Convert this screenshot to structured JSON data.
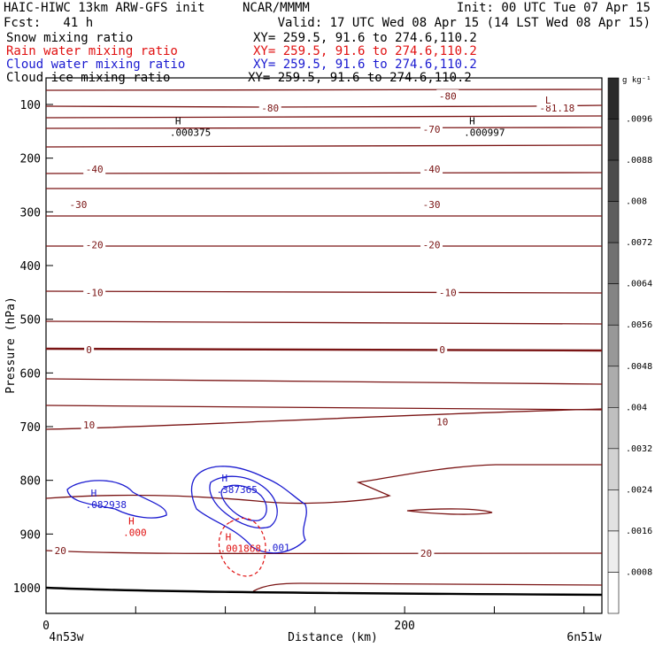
{
  "header": {
    "model": "HAIC-HIWC 13km ARW-GFS init",
    "org": "NCAR/MMMM",
    "init": "Init: 00 UTC Tue 07 Apr 15",
    "fcst": "Fcst:   41 h",
    "valid": "Valid: 17 UTC Wed 08 Apr 15 (14 LST Wed 08 Apr 15)"
  },
  "fields": [
    {
      "name": "Snow mixing ratio",
      "xy": "XY= 259.5, 91.6 to 274.6,110.2",
      "color": "#000000"
    },
    {
      "name": "Rain water mixing ratio",
      "xy": "XY= 259.5, 91.6 to 274.6,110.2",
      "color": "#e01010"
    },
    {
      "name": "Cloud water mixing ratio",
      "xy": "XY= 259.5, 91.6 to 274.6,110.2",
      "color": "#1a1ad0"
    },
    {
      "name": "Cloud ice mixing ratio",
      "xy": "XY= 259.5, 91.6 to 274.6,110.2",
      "color": "#000000"
    }
  ],
  "chart_data": {
    "type": "contour",
    "ylabel": "Pressure (hPa)",
    "xlabel": "Distance (km)",
    "ylim": [
      1050,
      60
    ],
    "xlim": [
      0,
      310
    ],
    "y_ticks": [
      100,
      200,
      300,
      400,
      500,
      600,
      700,
      800,
      900,
      1000
    ],
    "x_ticks": [
      0,
      200
    ],
    "x_endpoint_labels": [
      "4n53w",
      "6n51w"
    ],
    "temperature_contour_labels": [
      {
        "text": "-80",
        "x": 224,
        "p": 84
      },
      {
        "text": "-80",
        "x": 125,
        "p": 107
      },
      {
        "text": "-81.18",
        "x": 285,
        "p": 107
      },
      {
        "text": "L",
        "x": 280,
        "p": 92
      },
      {
        "text": "-70",
        "x": 215,
        "p": 146
      },
      {
        "text": "-40",
        "x": 27,
        "p": 220
      },
      {
        "text": "-40",
        "x": 215,
        "p": 220
      },
      {
        "text": "-30",
        "x": 18,
        "p": 286
      },
      {
        "text": "-30",
        "x": 215,
        "p": 286
      },
      {
        "text": "-20",
        "x": 27,
        "p": 361
      },
      {
        "text": "-20",
        "x": 215,
        "p": 361
      },
      {
        "text": "-10",
        "x": 27,
        "p": 450
      },
      {
        "text": "-10",
        "x": 224,
        "p": 450
      },
      {
        "text": "0",
        "x": 24,
        "p": 557
      },
      {
        "text": "0",
        "x": 221,
        "p": 557
      },
      {
        "text": "10",
        "x": 24,
        "p": 697
      },
      {
        "text": "10",
        "x": 221,
        "p": 691
      },
      {
        "text": "20",
        "x": 8,
        "p": 931
      },
      {
        "text": "20",
        "x": 212,
        "p": 936
      }
    ],
    "maxima_labels": [
      {
        "mark": "H",
        "value": ".000375",
        "x": 72,
        "p": 150,
        "color": "#000000"
      },
      {
        "mark": "H",
        "value": ".000997",
        "x": 236,
        "p": 150,
        "color": "#000000"
      },
      {
        "mark": "H",
        "value": ".082938",
        "x": 25,
        "p": 843,
        "color": "#1a1ad0"
      },
      {
        "mark": "H",
        "value": ".387365",
        "x": 98,
        "p": 815,
        "color": "#1a1ad0"
      },
      {
        "mark": "H",
        "value": ".000",
        "x": 46,
        "p": 895,
        "color": "#e01010"
      },
      {
        "mark": "H",
        "value": ".001868",
        "x": 100,
        "p": 925,
        "color": "#e01010"
      }
    ],
    "other_labels": [
      {
        "text": ".001",
        "x": 123,
        "p": 925,
        "color": "#1a1ad0"
      }
    ],
    "colorbar": {
      "unit": "g kg⁻¹",
      "ticks": [
        ".0096",
        ".0088",
        ".008",
        ".0072",
        ".0064",
        ".0056",
        ".0048",
        ".004",
        ".0032",
        ".0024",
        ".0016",
        ".0008"
      ],
      "colors": [
        "#2a2a2a",
        "#3b3b3b",
        "#4c4c4c",
        "#5e5e5e",
        "#717171",
        "#848484",
        "#989898",
        "#acacac",
        "#bfbfbf",
        "#d2d2d2",
        "#e2e2e2",
        "#eeeeee",
        "#ffffff"
      ]
    },
    "contour_color": "#7a1414",
    "grid": false
  }
}
